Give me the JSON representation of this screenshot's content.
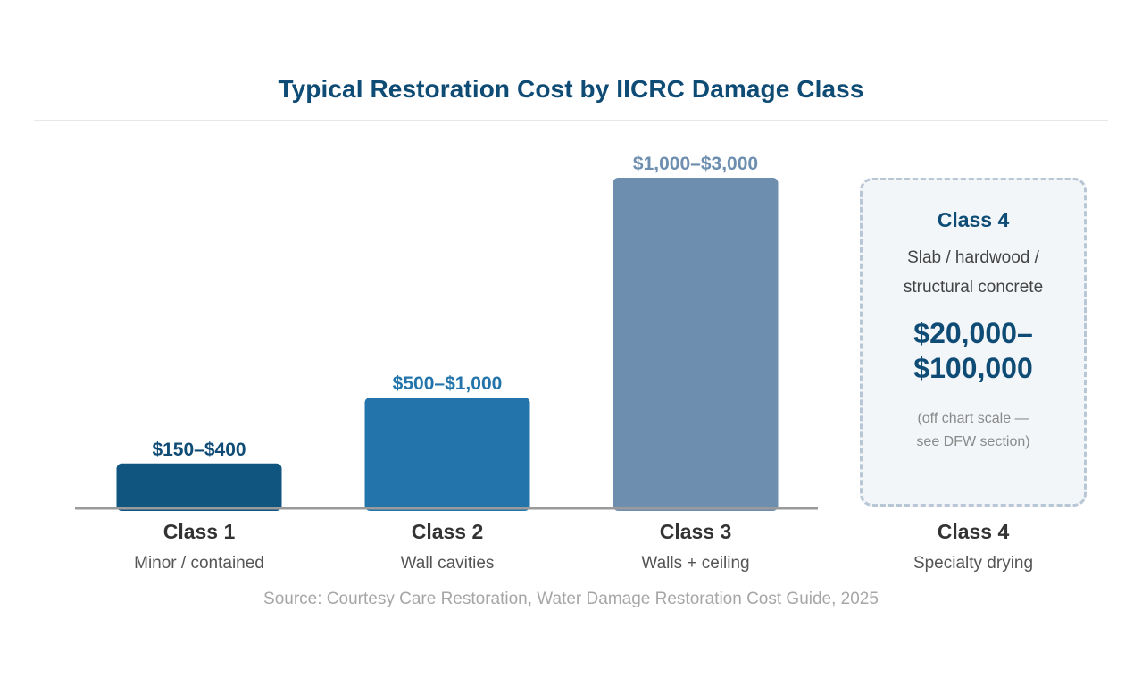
{
  "title": "Typical Restoration Cost by IICRC Damage Class",
  "chart_data": {
    "type": "bar",
    "categories": [
      "Class 1",
      "Class 2",
      "Class 3",
      "Class 4"
    ],
    "subcategories": [
      "Minor / contained",
      "Wall cavities",
      "Walls + ceiling",
      "Specialty drying"
    ],
    "series": [
      {
        "values": [
          {
            "low": 150,
            "high": 400
          },
          {
            "low": 500,
            "high": 1000
          },
          {
            "low": 1000,
            "high": 3000
          },
          {
            "low": 20000,
            "high": 100000
          }
        ]
      }
    ],
    "value_labels": [
      "$150–$400",
      "$500–$1,000",
      "$1,000–$3,000",
      "$20,000–$100,000"
    ],
    "bar_colors": [
      "#0f5580",
      "#2274ab",
      "#6d8eae"
    ],
    "label_colors": [
      "#0f4c75",
      "#2274ab",
      "#6d8eae"
    ],
    "off_scale_index": 3,
    "ylim": [
      0,
      3000
    ],
    "grid": false,
    "legend": "none"
  },
  "off_scale_panel": {
    "heading": "Class 4",
    "description_lines": [
      "Slab / hardwood /",
      "structural concrete"
    ],
    "value_lines": [
      "$20,000–",
      "$100,000"
    ],
    "note_lines": [
      "(off chart scale —",
      "see DFW section)"
    ]
  },
  "source": "Source: Courtesy Care Restoration, Water Damage Restoration Cost Guide, 2025",
  "colors": {
    "title": "#0f4c75",
    "axis": "#9a9a9a",
    "category_label": "#333333",
    "subcategory_label": "#555555",
    "panel_border": "#b8c6d6",
    "panel_fill": "#f3f6f9"
  }
}
